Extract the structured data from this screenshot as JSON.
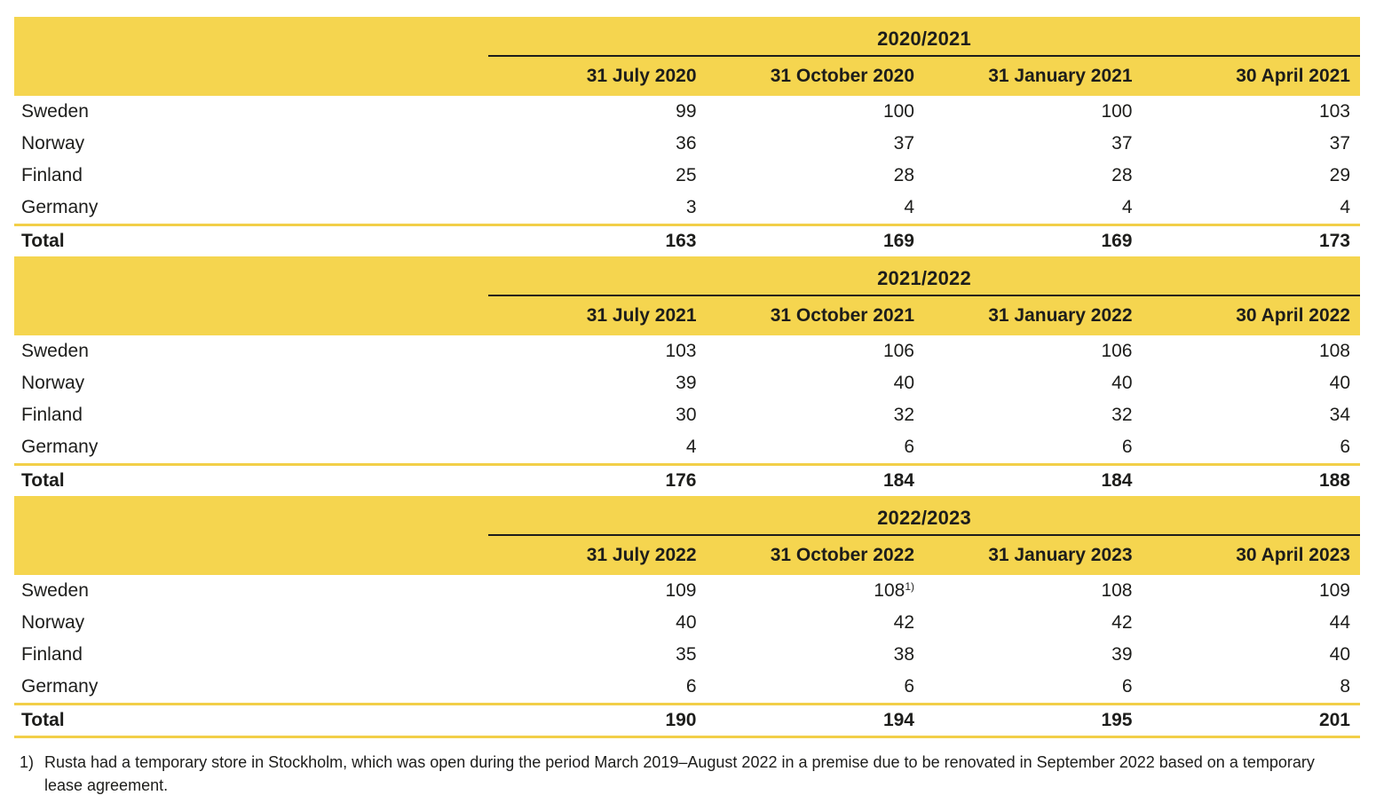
{
  "colors": {
    "band": "#F5D54F",
    "rule": "#F2CF48",
    "text": "#1D1D1B",
    "background": "#FFFFFF"
  },
  "sections": [
    {
      "title": "2020/2021",
      "columns": [
        "31 July 2020",
        "31 October 2020",
        "31 January 2021",
        "30 April 2021"
      ],
      "rows": [
        {
          "label": "Sweden",
          "values": [
            "99",
            "100",
            "100",
            "103"
          ]
        },
        {
          "label": "Norway",
          "values": [
            "36",
            "37",
            "37",
            "37"
          ]
        },
        {
          "label": "Finland",
          "values": [
            "25",
            "28",
            "28",
            "29"
          ]
        },
        {
          "label": "Germany",
          "values": [
            "3",
            "4",
            "4",
            "4"
          ]
        }
      ],
      "total": {
        "label": "Total",
        "values": [
          "163",
          "169",
          "169",
          "173"
        ]
      }
    },
    {
      "title": "2021/2022",
      "columns": [
        "31 July 2021",
        "31 October 2021",
        "31 January 2022",
        "30 April 2022"
      ],
      "rows": [
        {
          "label": "Sweden",
          "values": [
            "103",
            "106",
            "106",
            "108"
          ]
        },
        {
          "label": "Norway",
          "values": [
            "39",
            "40",
            "40",
            "40"
          ]
        },
        {
          "label": "Finland",
          "values": [
            "30",
            "32",
            "32",
            "34"
          ]
        },
        {
          "label": "Germany",
          "values": [
            "4",
            "6",
            "6",
            "6"
          ]
        }
      ],
      "total": {
        "label": "Total",
        "values": [
          "176",
          "184",
          "184",
          "188"
        ]
      }
    },
    {
      "title": "2022/2023",
      "columns": [
        "31 July 2022",
        "31 October 2022",
        "31 January 2023",
        "30 April 2023"
      ],
      "rows": [
        {
          "label": "Sweden",
          "values": [
            "109",
            "108",
            "108",
            "109"
          ],
          "sup": {
            "1": "1)"
          }
        },
        {
          "label": "Norway",
          "values": [
            "40",
            "42",
            "42",
            "44"
          ]
        },
        {
          "label": "Finland",
          "values": [
            "35",
            "38",
            "39",
            "40"
          ]
        },
        {
          "label": "Germany",
          "values": [
            "6",
            "6",
            "6",
            "8"
          ]
        }
      ],
      "total": {
        "label": "Total",
        "values": [
          "190",
          "194",
          "195",
          "201"
        ]
      }
    }
  ],
  "footnote": {
    "marker": "1)",
    "text": "Rusta had a temporary store in Stockholm, which was open during the period March 2019–August 2022 in a premise due to be renovated in September 2022 based on a temporary lease agreement."
  }
}
